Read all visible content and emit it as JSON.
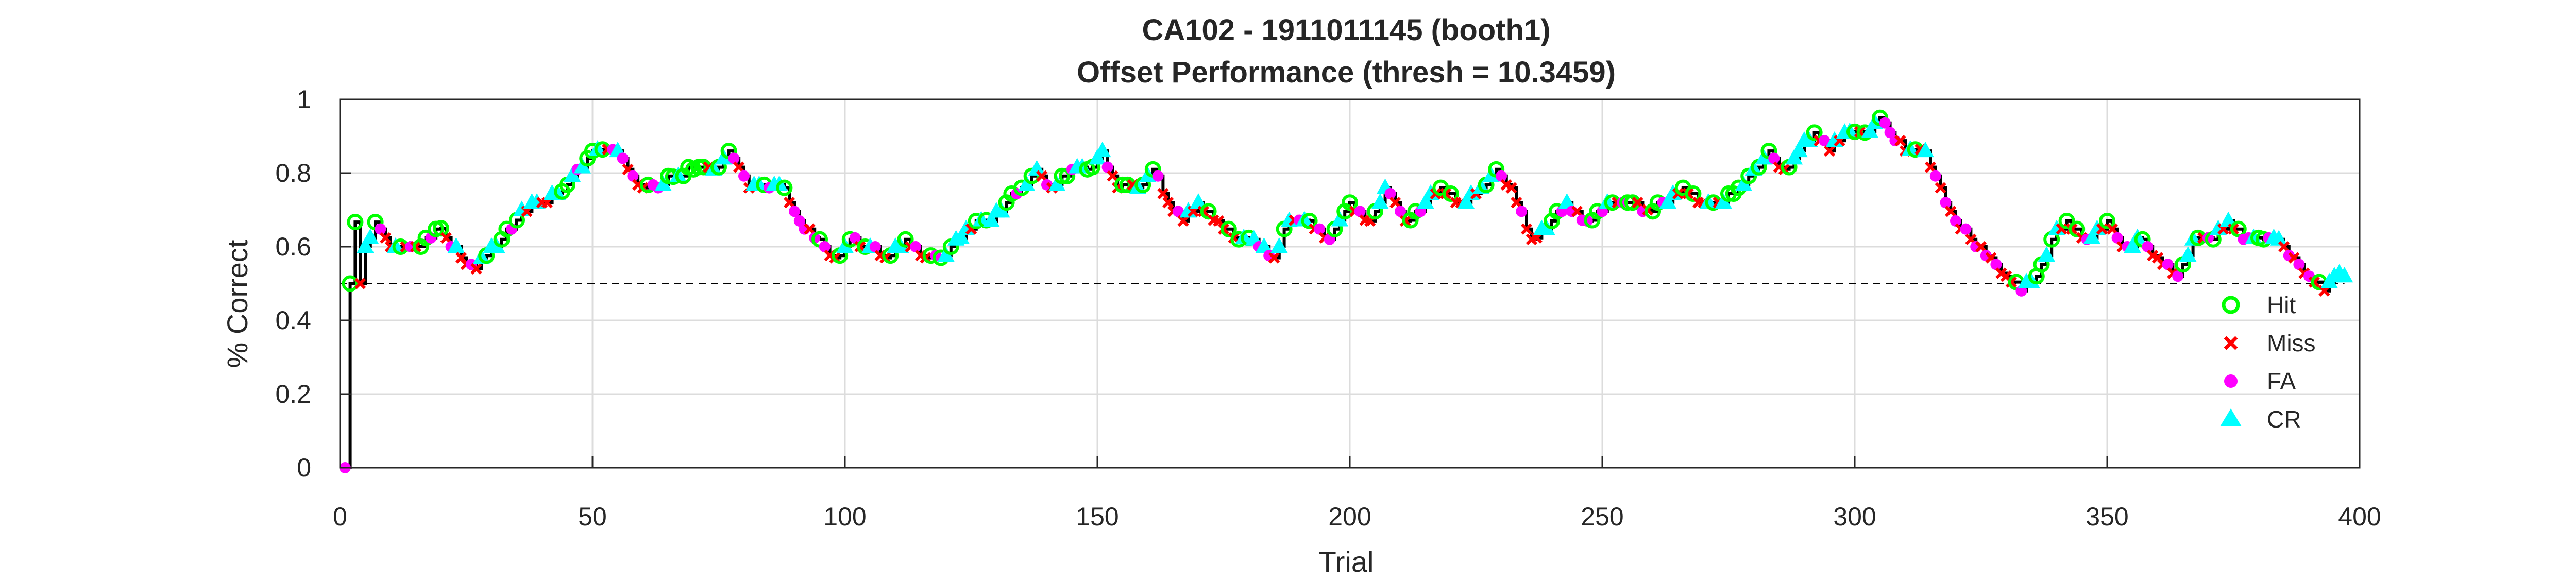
{
  "chart_data": {
    "type": "line",
    "title": "CA102 - 1911011145 (booth1)",
    "subtitle": "Offset Performance (thresh = 10.3459)",
    "xlabel": "Trial",
    "ylabel": "% Correct",
    "xlim": [
      0,
      400
    ],
    "ylim": [
      0,
      1
    ],
    "x_ticks": [
      0,
      50,
      100,
      150,
      200,
      250,
      300,
      350,
      400
    ],
    "y_ticks": [
      0,
      0.2,
      0.4,
      0.6,
      0.8,
      1
    ],
    "x_tick_labels": [
      "0",
      "50",
      "100",
      "150",
      "200",
      "250",
      "300",
      "350",
      "400"
    ],
    "y_tick_labels": [
      "0",
      "0.2",
      "0.4",
      "0.6",
      "0.8",
      "1"
    ],
    "grid": true,
    "legend_position": "bottom-right",
    "reference_line": {
      "y": 0.5,
      "style": "dashed"
    },
    "line_color": "#000000",
    "outcomes": [
      "Hit",
      "Miss",
      "FA",
      "CR"
    ],
    "series": [
      {
        "name": "Hit",
        "marker": "circle-open",
        "color": "#00ff00"
      },
      {
        "name": "Miss",
        "marker": "x",
        "color": "#ff0000"
      },
      {
        "name": "FA",
        "marker": "dot",
        "color": "#ff00ff"
      },
      {
        "name": "CR",
        "marker": "triangle",
        "color": "#00ffff"
      }
    ],
    "keyframes": [
      [
        1,
        0.0,
        "FA"
      ],
      [
        2,
        0.5,
        "Hit"
      ],
      [
        3,
        0.667,
        "Hit"
      ],
      [
        4,
        0.5,
        "Miss"
      ],
      [
        5,
        0.6,
        "CR"
      ],
      [
        7,
        0.667,
        "Hit"
      ],
      [
        10,
        0.6,
        "Miss"
      ],
      [
        15,
        0.6,
        "Miss"
      ],
      [
        20,
        0.65,
        "Hit"
      ],
      [
        24,
        0.57,
        "Miss"
      ],
      [
        27,
        0.54,
        "Miss"
      ],
      [
        28,
        0.57,
        "CR"
      ],
      [
        32,
        0.62,
        "Hit"
      ],
      [
        36,
        0.7,
        "CR"
      ],
      [
        40,
        0.72,
        "Miss"
      ],
      [
        44,
        0.75,
        "Hit"
      ],
      [
        47,
        0.81,
        "FA"
      ],
      [
        50,
        0.86,
        "Hit"
      ],
      [
        55,
        0.86,
        "CR"
      ],
      [
        57,
        0.81,
        "Miss"
      ],
      [
        60,
        0.76,
        "Miss"
      ],
      [
        63,
        0.76,
        "FA"
      ],
      [
        66,
        0.79,
        "Hit"
      ],
      [
        70,
        0.81,
        "Hit"
      ],
      [
        74,
        0.81,
        "CR"
      ],
      [
        77,
        0.86,
        "Hit"
      ],
      [
        81,
        0.76,
        "Miss"
      ],
      [
        85,
        0.76,
        "FA"
      ],
      [
        88,
        0.76,
        "Hit"
      ],
      [
        91,
        0.67,
        "FA"
      ],
      [
        95,
        0.62,
        "Hit"
      ],
      [
        98,
        0.57,
        "Miss"
      ],
      [
        101,
        0.62,
        "Hit"
      ],
      [
        105,
        0.6,
        "CR"
      ],
      [
        108,
        0.57,
        "Miss"
      ],
      [
        112,
        0.62,
        "Hit"
      ],
      [
        116,
        0.57,
        "Miss"
      ],
      [
        119,
        0.57,
        "Hit"
      ],
      [
        122,
        0.62,
        "CR"
      ],
      [
        126,
        0.67,
        "Hit"
      ],
      [
        129,
        0.67,
        "CR"
      ],
      [
        132,
        0.72,
        "Hit"
      ],
      [
        135,
        0.76,
        "Hit"
      ],
      [
        138,
        0.81,
        "CR"
      ],
      [
        141,
        0.76,
        "Miss"
      ],
      [
        145,
        0.81,
        "FA"
      ],
      [
        148,
        0.81,
        "Hit"
      ],
      [
        151,
        0.86,
        "CR"
      ],
      [
        154,
        0.76,
        "Miss"
      ],
      [
        158,
        0.76,
        "CR"
      ],
      [
        161,
        0.81,
        "Hit"
      ],
      [
        164,
        0.72,
        "Miss"
      ],
      [
        167,
        0.67,
        "Miss"
      ],
      [
        170,
        0.72,
        "CR"
      ],
      [
        174,
        0.67,
        "Miss"
      ],
      [
        178,
        0.62,
        "Hit"
      ],
      [
        181,
        0.62,
        "CR"
      ],
      [
        185,
        0.57,
        "Miss"
      ],
      [
        188,
        0.67,
        "CR"
      ],
      [
        192,
        0.67,
        "Hit"
      ],
      [
        196,
        0.62,
        "FA"
      ],
      [
        200,
        0.72,
        "Hit"
      ],
      [
        204,
        0.67,
        "Miss"
      ],
      [
        207,
        0.76,
        "CR"
      ],
      [
        211,
        0.67,
        "Miss"
      ],
      [
        215,
        0.72,
        "CR"
      ],
      [
        218,
        0.76,
        "Hit"
      ],
      [
        222,
        0.72,
        "Miss"
      ],
      [
        226,
        0.76,
        "CR"
      ],
      [
        229,
        0.81,
        "Hit"
      ],
      [
        232,
        0.76,
        "Miss"
      ],
      [
        236,
        0.62,
        "Miss"
      ],
      [
        240,
        0.67,
        "Hit"
      ],
      [
        243,
        0.72,
        "CR"
      ],
      [
        247,
        0.67,
        "FA"
      ],
      [
        251,
        0.72,
        "CR"
      ],
      [
        255,
        0.72,
        "Hit"
      ],
      [
        259,
        0.7,
        "Miss"
      ],
      [
        263,
        0.72,
        "CR"
      ],
      [
        266,
        0.76,
        "Hit"
      ],
      [
        270,
        0.72,
        "Miss"
      ],
      [
        274,
        0.72,
        "CR"
      ],
      [
        277,
        0.76,
        "Hit"
      ],
      [
        280,
        0.81,
        "CR"
      ],
      [
        283,
        0.86,
        "Hit"
      ],
      [
        286,
        0.81,
        "Miss"
      ],
      [
        289,
        0.86,
        "CR"
      ],
      [
        292,
        0.91,
        "Hit"
      ],
      [
        295,
        0.86,
        "Miss"
      ],
      [
        298,
        0.91,
        "CR"
      ],
      [
        302,
        0.91,
        "Hit"
      ],
      [
        305,
        0.95,
        "Hit"
      ],
      [
        307,
        0.91,
        "FA"
      ],
      [
        310,
        0.86,
        "Miss"
      ],
      [
        314,
        0.86,
        "CR"
      ],
      [
        317,
        0.76,
        "Miss"
      ],
      [
        320,
        0.67,
        "FA"
      ],
      [
        323,
        0.62,
        "Miss"
      ],
      [
        327,
        0.57,
        "Miss"
      ],
      [
        330,
        0.52,
        "Miss"
      ],
      [
        333,
        0.48,
        "FA"
      ],
      [
        336,
        0.52,
        "Hit"
      ],
      [
        339,
        0.62,
        "Hit"
      ],
      [
        342,
        0.67,
        "Hit"
      ],
      [
        346,
        0.62,
        "FA"
      ],
      [
        350,
        0.67,
        "Hit"
      ],
      [
        353,
        0.6,
        "Miss"
      ],
      [
        357,
        0.62,
        "Hit"
      ],
      [
        360,
        0.57,
        "Miss"
      ],
      [
        364,
        0.52,
        "FA"
      ],
      [
        367,
        0.62,
        "CR"
      ],
      [
        371,
        0.62,
        "Hit"
      ],
      [
        374,
        0.67,
        "CR"
      ],
      [
        377,
        0.62,
        "FA"
      ],
      [
        381,
        0.62,
        "Hit"
      ],
      [
        384,
        0.62,
        "CR"
      ],
      [
        387,
        0.57,
        "Miss"
      ],
      [
        390,
        0.52,
        "FA"
      ],
      [
        393,
        0.48,
        "Miss"
      ],
      [
        395,
        0.52,
        "CR"
      ],
      [
        397,
        0.52,
        "CR"
      ]
    ]
  }
}
